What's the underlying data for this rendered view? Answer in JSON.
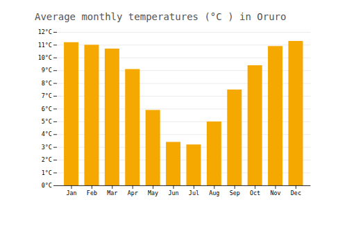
{
  "chart_data": {
    "type": "bar",
    "title": "Average monthly temperatures (°C ) in Oruro",
    "categories": [
      "Jan",
      "Feb",
      "Mar",
      "Apr",
      "May",
      "Jun",
      "Jul",
      "Aug",
      "Sep",
      "Oct",
      "Nov",
      "Dec"
    ],
    "values": [
      11.2,
      11.0,
      10.7,
      9.1,
      5.9,
      3.4,
      3.2,
      5.0,
      7.5,
      9.4,
      10.9,
      11.3
    ],
    "color": "#F5A800",
    "ylim": [
      0,
      12
    ],
    "yticks": [
      {
        "value": 0,
        "label": "0°C"
      },
      {
        "value": 1,
        "label": "1°C"
      },
      {
        "value": 2,
        "label": "2°C"
      },
      {
        "value": 3,
        "label": "3°C"
      },
      {
        "value": 4,
        "label": "4°C"
      },
      {
        "value": 5,
        "label": "5°C"
      },
      {
        "value": 6,
        "label": "6°C"
      },
      {
        "value": 7,
        "label": "7°C"
      },
      {
        "value": 8,
        "label": "8°C"
      },
      {
        "value": 9,
        "label": "9°C"
      },
      {
        "value": 10,
        "label": "10°C"
      },
      {
        "value": 11,
        "label": "11°C"
      },
      {
        "value": 12,
        "label": "12°C"
      }
    ],
    "grid": true
  }
}
